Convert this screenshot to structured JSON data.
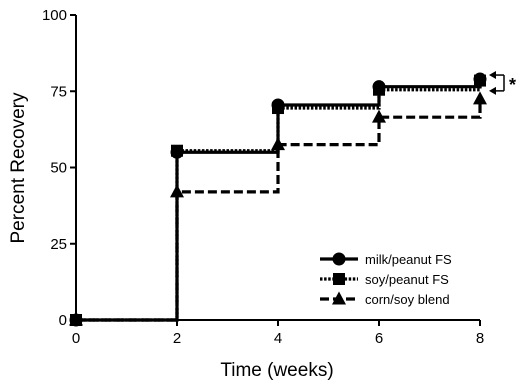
{
  "chart_data": {
    "type": "line",
    "step": true,
    "title": "",
    "xlabel": "Time (weeks)",
    "ylabel": "Percent Recovery",
    "xlim": [
      0,
      8
    ],
    "ylim": [
      0,
      100
    ],
    "x_ticks": [
      "0",
      "2",
      "4",
      "6",
      "8"
    ],
    "y_ticks": [
      "0",
      "25",
      "50",
      "75",
      "100"
    ],
    "grid": false,
    "legend_position": "bottom-right",
    "series": [
      {
        "name": "milk/peanut FS",
        "marker": "circle",
        "dash": "solid",
        "x": [
          0,
          2,
          4,
          6,
          8
        ],
        "y": [
          0,
          55,
          70.5,
          76.5,
          79
        ]
      },
      {
        "name": "soy/peanut FS",
        "marker": "square",
        "dash": "dotted",
        "x": [
          0,
          2,
          4,
          6,
          8
        ],
        "y": [
          0,
          55.5,
          69.5,
          75.5,
          78.5
        ]
      },
      {
        "name": "corn/soy blend",
        "marker": "triangle",
        "dash": "dashed",
        "x": [
          0,
          2,
          4,
          6,
          8
        ],
        "y": [
          0,
          42,
          57.5,
          66.5,
          72.5
        ]
      }
    ],
    "annotation": {
      "text": "*"
    }
  }
}
